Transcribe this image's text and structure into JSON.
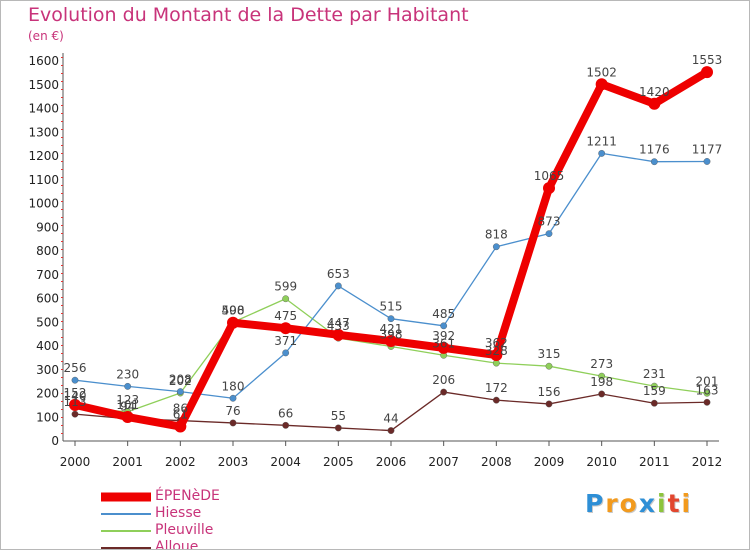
{
  "chart_data": {
    "type": "line",
    "title": "Evolution du Montant de la Dette par Habitant",
    "subtitle": "(en €)",
    "x": [
      "2000",
      "2001",
      "2002",
      "2003",
      "2004",
      "2005",
      "2006",
      "2007",
      "2008",
      "2009",
      "2010",
      "2011",
      "2012"
    ],
    "yticks": [
      "0",
      "100",
      "200",
      "300",
      "400",
      "500",
      "600",
      "700",
      "800",
      "900",
      "1000",
      "1100",
      "1200",
      "1300",
      "1400",
      "1500",
      "1600"
    ],
    "ylim": [
      0,
      1600
    ],
    "grid": false,
    "legend_position": "bottom-left",
    "series": [
      {
        "name": "ÉPENèDE",
        "color": "#ee0000",
        "values": [
          152,
          101,
          61,
          498,
          475,
          447,
          421,
          392,
          362,
          1065,
          1502,
          1420,
          1553
        ]
      },
      {
        "name": "Hiesse",
        "color": "#4b8fcd",
        "values": [
          256,
          230,
          208,
          180,
          371,
          653,
          515,
          485,
          818,
          873,
          1211,
          1176,
          1177
        ]
      },
      {
        "name": "Pleuville",
        "color": "#8fcf5a",
        "values": [
          140,
          123,
          202,
          500,
          599,
          433,
          398,
          361,
          328,
          315,
          273,
          231,
          201
        ]
      },
      {
        "name": "Alloue",
        "color": "#6b2a28",
        "values": [
          113,
          94,
          86,
          76,
          66,
          55,
          44,
          206,
          172,
          156,
          198,
          159,
          163
        ]
      }
    ],
    "data_labels": [
      [
        "152",
        "101",
        "61",
        "498",
        "475",
        "447",
        "421",
        "392",
        "362",
        "1065",
        "1502",
        "1420",
        "1553"
      ],
      [
        "256",
        "230",
        "208",
        "180",
        "371",
        "653",
        "515",
        "485",
        "818",
        "873",
        "1211",
        "1176",
        "1177"
      ],
      [
        "140",
        "123",
        "202",
        "500",
        "599",
        "433",
        "398",
        "361",
        "328",
        "315",
        "273",
        "231",
        "201"
      ],
      [
        "113",
        "94",
        "86",
        "76",
        "66",
        "55",
        "44",
        "206",
        "172",
        "156",
        "198",
        "159",
        "163"
      ]
    ]
  },
  "logo": {
    "letters": [
      "P",
      "r",
      "o",
      "x",
      "i",
      "t",
      "i"
    ],
    "colors": [
      "#2e8fd6",
      "#f29a1d",
      "#f29a1d",
      "#2e8fd6",
      "#8cc43c",
      "#e2462e",
      "#f29a1d"
    ]
  }
}
